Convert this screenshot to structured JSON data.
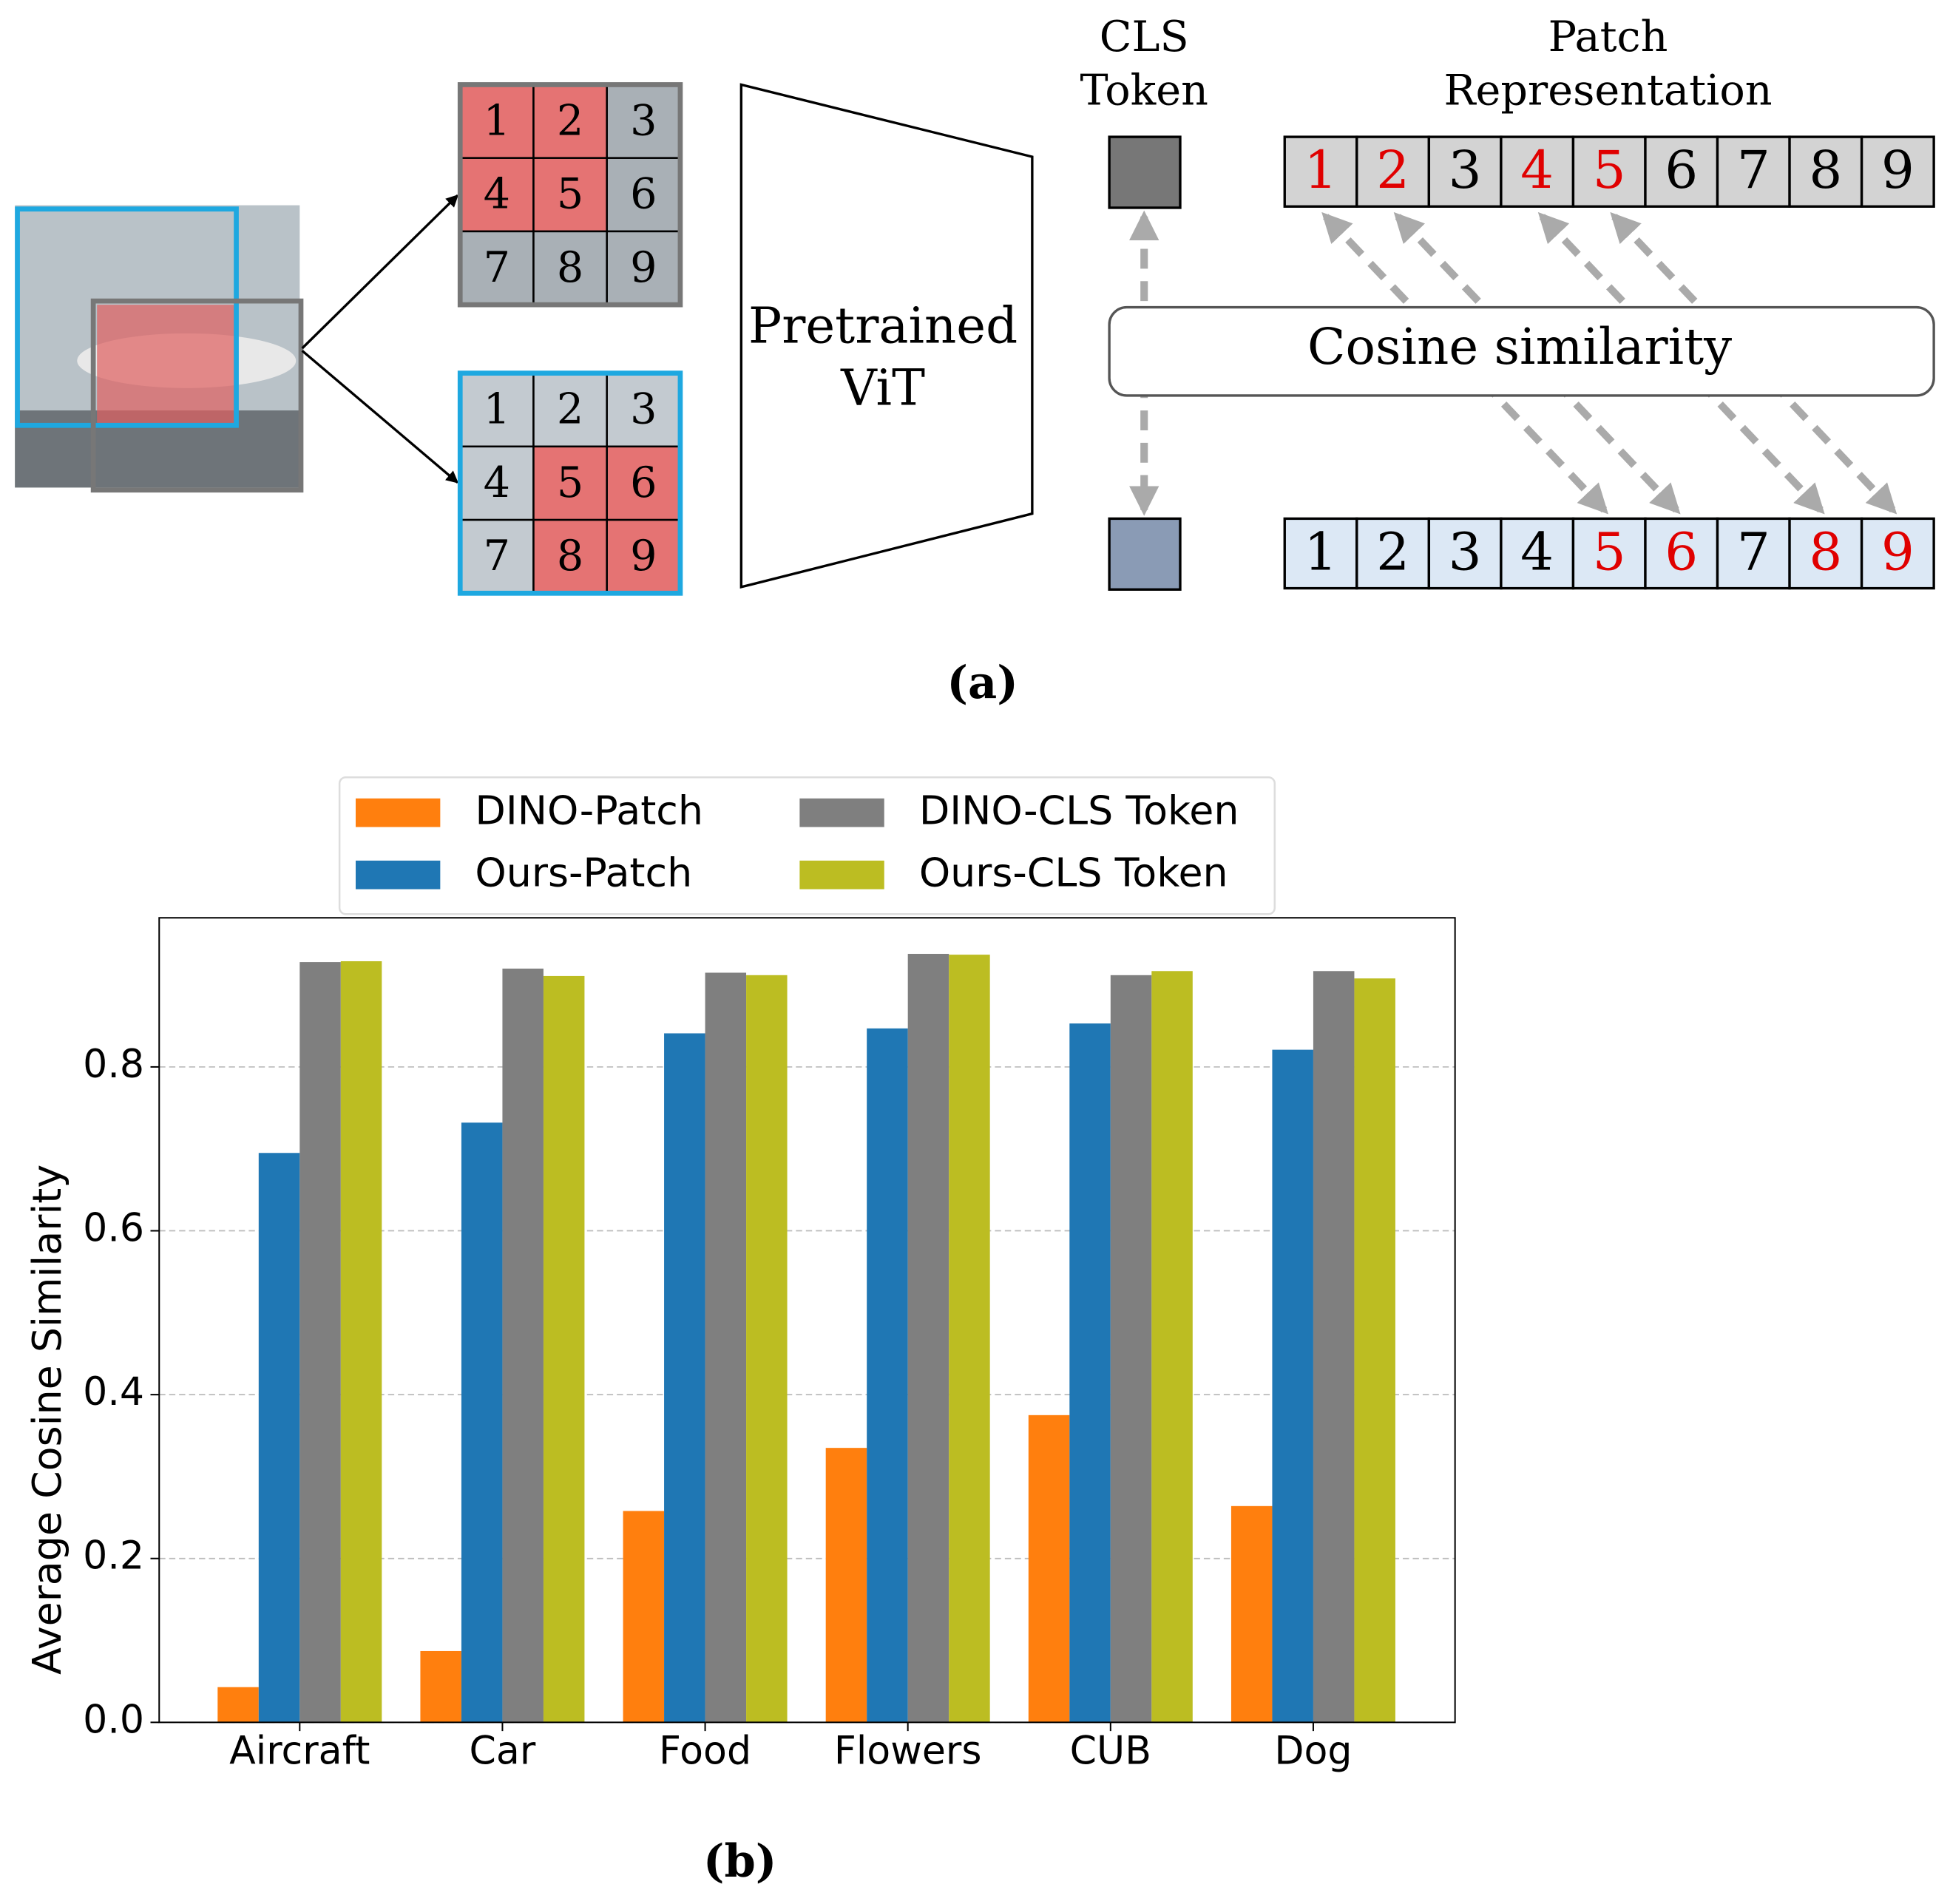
{
  "diagram": {
    "cls_label": [
      "CLS",
      "Token"
    ],
    "patch_label": [
      "Patch",
      "Representation"
    ],
    "model_label": [
      "Pretrained",
      "ViT"
    ],
    "similarity_label": "Cosine similarity",
    "patch_numbers": [
      "1",
      "2",
      "3",
      "4",
      "5",
      "6",
      "7",
      "8",
      "9"
    ],
    "caption": "(a)"
  },
  "chart_caption": "(b)",
  "chart_data": {
    "type": "bar",
    "y_label": "Average Cosine Similarity",
    "categories": [
      "Aircraft",
      "Car",
      "Food",
      "Flowers",
      "CUB",
      "Dog"
    ],
    "series": [
      {
        "name": "DINO-Patch",
        "color": "#ff7f0e",
        "values": [
          0.043,
          0.087,
          0.258,
          0.335,
          0.375,
          0.264
        ]
      },
      {
        "name": "Ours-Patch",
        "color": "#1f77b4",
        "values": [
          0.695,
          0.732,
          0.841,
          0.847,
          0.853,
          0.821
        ]
      },
      {
        "name": "DINO-CLS Token",
        "color": "#7f7f7f",
        "values": [
          0.928,
          0.92,
          0.915,
          0.938,
          0.912,
          0.917
        ]
      },
      {
        "name": "Ours-CLS Token",
        "color": "#bcbd22",
        "values": [
          0.929,
          0.911,
          0.912,
          0.937,
          0.917,
          0.908
        ]
      }
    ],
    "ylim": [
      0,
      0.982
    ],
    "yticks": [
      {
        "value": 0,
        "label": "0.0"
      },
      0.2,
      0.4,
      0.6,
      0.8
    ],
    "grid": true,
    "legend": "top"
  }
}
